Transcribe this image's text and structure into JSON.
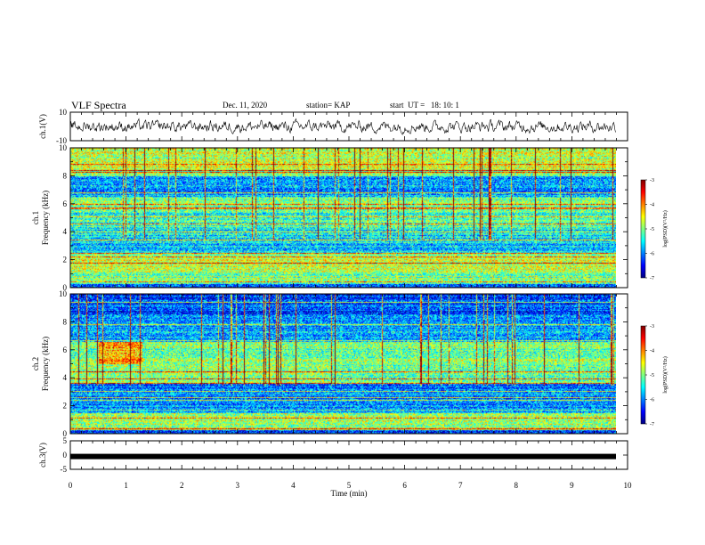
{
  "header": {
    "title": "VLF Spectra",
    "date": "Dec. 11, 2020",
    "station": "station= KAP",
    "start": "start  UT =   18: 10: 1"
  },
  "chart_data": [
    {
      "type": "line",
      "panel": "ch1-waveform",
      "ylabel": "ch.1(V)",
      "ylim": [
        -10,
        10
      ],
      "yticks": [
        "10",
        "-10"
      ],
      "xlim": [
        0,
        10
      ],
      "y_typical_range": [
        -5,
        5
      ]
    },
    {
      "type": "heatmap",
      "panel": "ch1-spectrogram",
      "ylabel": "ch.1\nFrequency (kHz)",
      "ylim": [
        0,
        10
      ],
      "yticks": [
        "0",
        "2",
        "4",
        "6",
        "8",
        "10"
      ],
      "xlim": [
        0,
        9.85
      ],
      "colorbar": {
        "label": "log(PSD)(V²/Hz)",
        "range": [
          -7,
          -3
        ],
        "ticks": [
          "-3",
          "-4",
          "-5",
          "-6",
          "-7"
        ]
      }
    },
    {
      "type": "heatmap",
      "panel": "ch2-spectrogram",
      "ylabel": "ch.2\nFrequency (kHz)",
      "ylim": [
        0,
        10
      ],
      "yticks": [
        "0",
        "2",
        "4",
        "6",
        "8",
        "10"
      ],
      "xlim": [
        0,
        9.85
      ],
      "colorbar": {
        "label": "log(PSD)(V²/Hz)",
        "range": [
          -7,
          -3
        ],
        "ticks": [
          "-3",
          "-4",
          "-5",
          "-6",
          "-7"
        ]
      }
    },
    {
      "type": "line",
      "panel": "ch3-signal",
      "ylabel": "ch.3(V)",
      "ylim": [
        -5,
        5
      ],
      "yticks": [
        "5",
        "0",
        "-5"
      ],
      "xlim": [
        0,
        10
      ],
      "constant_value": -0.5
    }
  ],
  "x_axis": {
    "label": "Time (min)",
    "ticks": [
      "0",
      "1",
      "2",
      "3",
      "4",
      "5",
      "6",
      "7",
      "8",
      "9",
      "10"
    ]
  },
  "colors": {
    "colormap": [
      "#00007f",
      "#0000ff",
      "#0080ff",
      "#00ffff",
      "#80ff80",
      "#ffff00",
      "#ff8000",
      "#ff0000",
      "#7f0000"
    ]
  }
}
